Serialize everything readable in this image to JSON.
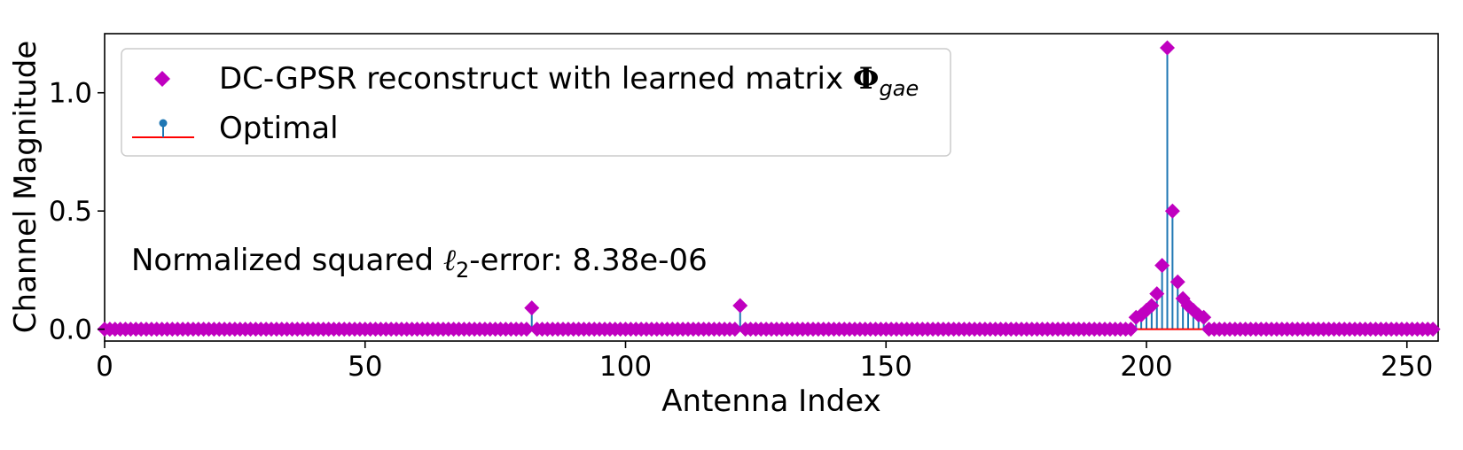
{
  "chart_data": {
    "type": "scatter",
    "xlabel": "Antenna Index",
    "ylabel": "Channel Magnitude",
    "xlim": [
      0,
      256
    ],
    "ylim": [
      -0.05,
      1.25
    ],
    "xticks": [
      0,
      50,
      100,
      150,
      200,
      250
    ],
    "xtick_labels": [
      "0",
      "50",
      "100",
      "150",
      "200",
      "250"
    ],
    "yticks": [
      0.0,
      0.5,
      1.0
    ],
    "ytick_labels": [
      "0.0",
      "0.5",
      "1.0"
    ],
    "grid": false,
    "legend_position": "top-left",
    "annotation": {
      "prefix": "Normalized squared ",
      "ell": "ℓ",
      "sub": "2",
      "suffix": "-error: 8.38e-06"
    },
    "num_points": 256,
    "baseline_value": 0.0,
    "nonzero_indices": [
      82,
      122,
      198,
      199,
      200,
      201,
      202,
      203,
      204,
      205,
      206,
      207,
      208,
      209,
      210,
      211
    ],
    "nonzero_values": [
      0.09,
      0.1,
      0.05,
      0.06,
      0.08,
      0.1,
      0.15,
      0.27,
      1.19,
      0.5,
      0.2,
      0.13,
      0.1,
      0.08,
      0.06,
      0.05
    ],
    "series": [
      {
        "name": "DC-GPSR reconstruct with learned matrix",
        "name_bold": "Φ",
        "name_sub": "gae",
        "marker": "diamond",
        "color": "#c000c0"
      },
      {
        "name": "Optimal",
        "marker": "stem",
        "color": "#1f77b4",
        "baseline_color": "#ff0000"
      }
    ]
  }
}
